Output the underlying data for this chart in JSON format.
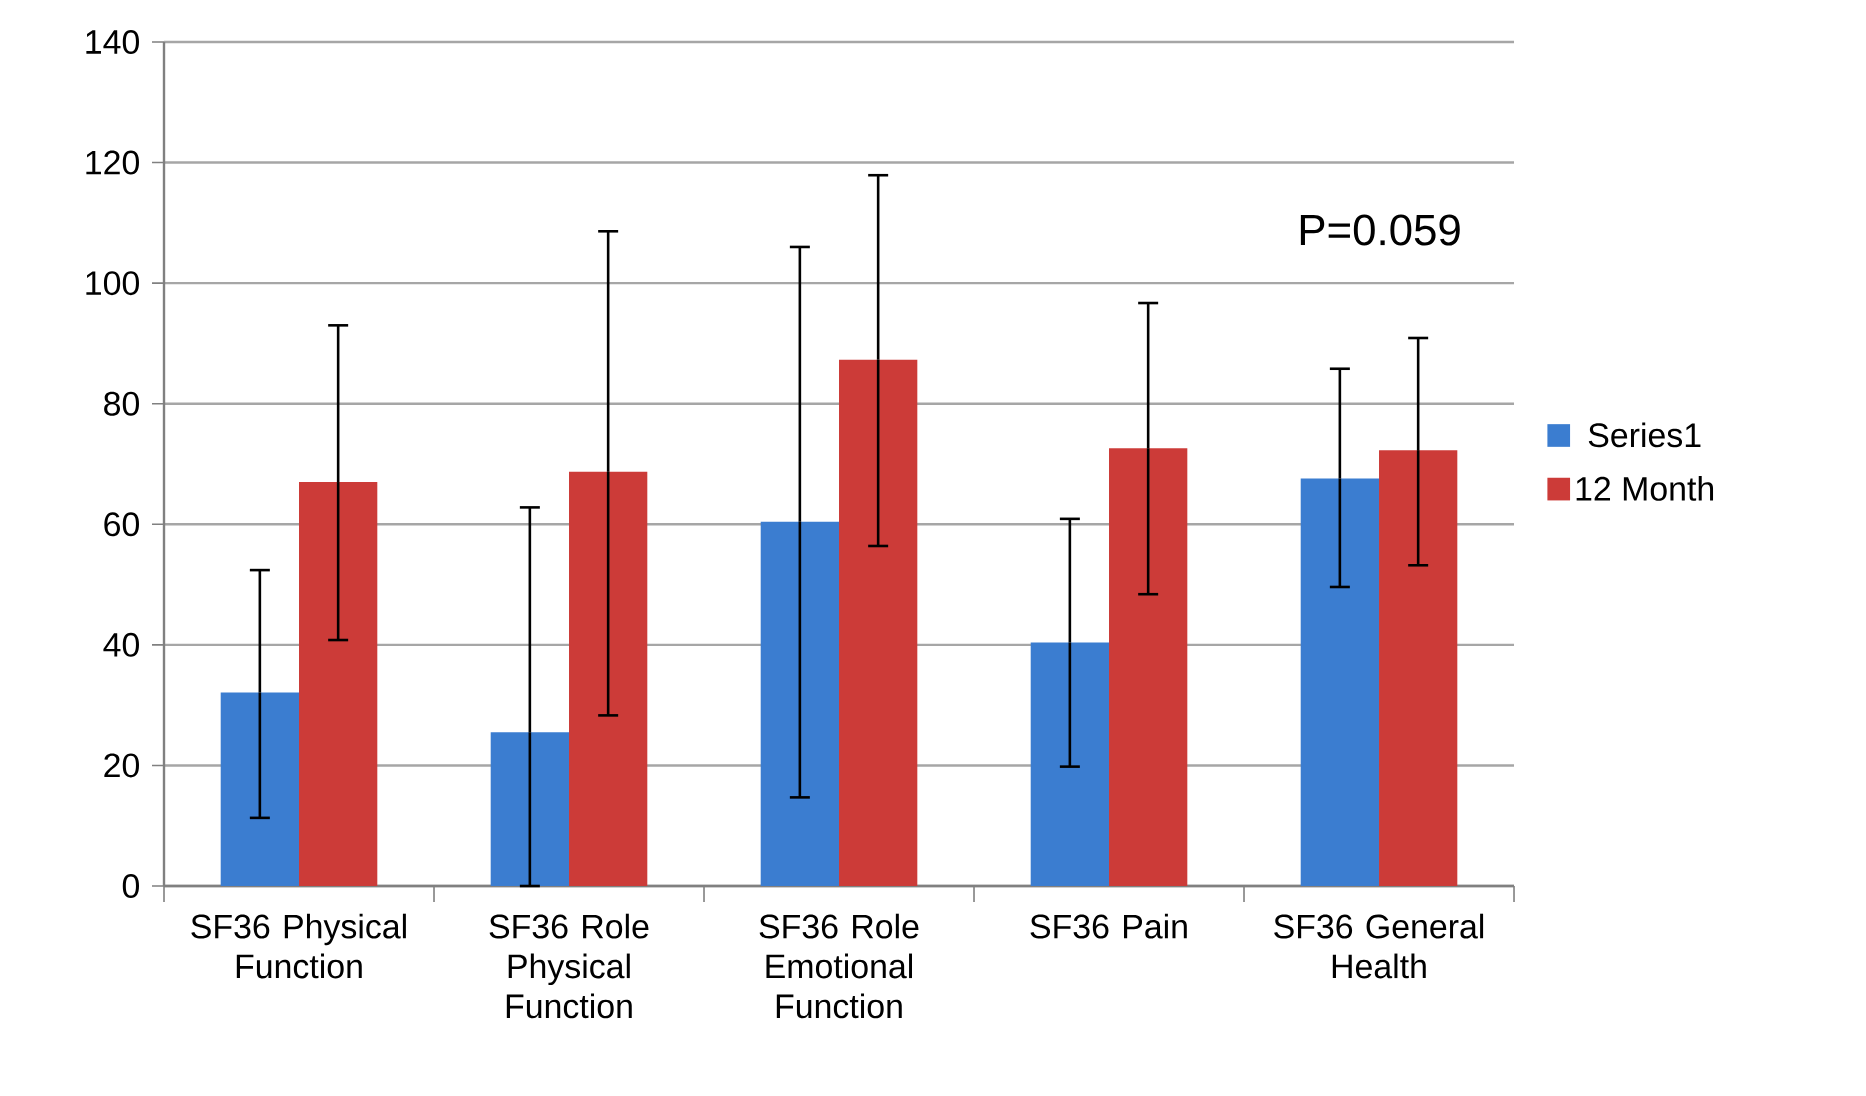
{
  "chart_data": {
    "type": "bar",
    "categories": [
      "SF36 Physical Function",
      "SF36 Role Physical Function",
      "SF36 Role Emotional Function",
      "SF36 Pain",
      "SF36 General Health"
    ],
    "series": [
      {
        "name": "Series1",
        "color": "#3b7dd0",
        "values": [
          32.1,
          25.5,
          60.4,
          40.4,
          67.6
        ],
        "errors": [
          [
            11.3,
            52.4
          ],
          [
            0,
            62.8
          ],
          [
            14.7,
            106.0
          ],
          [
            19.8,
            60.9
          ],
          [
            49.6,
            85.8
          ]
        ]
      },
      {
        "name": "12 Month",
        "color": "#cc3b38",
        "values": [
          67.0,
          68.7,
          87.3,
          72.6,
          72.3
        ],
        "errors": [
          [
            40.8,
            93.0
          ],
          [
            28.3,
            108.6
          ],
          [
            56.4,
            117.9
          ],
          [
            48.4,
            96.7
          ],
          [
            53.2,
            90.9
          ]
        ]
      }
    ],
    "ylim": [
      0,
      140
    ],
    "yticks": [
      0,
      20,
      40,
      60,
      80,
      100,
      120,
      140
    ],
    "grid": "y",
    "legend": "right",
    "annotations": [
      "P=0.059"
    ]
  }
}
